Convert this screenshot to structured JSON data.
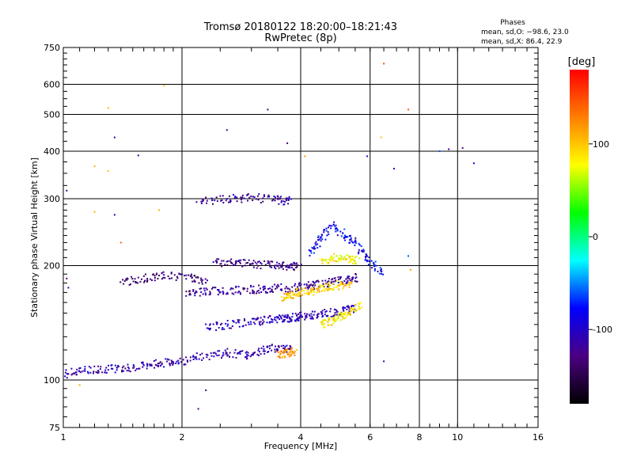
{
  "chart_data": {
    "type": "scatter",
    "title": "Tromsø 20180122 18:20:00–18:21:43",
    "subtitle": "RwPretec (8p)",
    "xlabel": "Frequency [MHz]",
    "ylabel": "Stationary phase Virtual Height [km]",
    "x_scale": "log",
    "y_scale": "log",
    "xlim": [
      1,
      16
    ],
    "ylim": [
      75,
      750
    ],
    "x_ticks": [
      1,
      2,
      4,
      6,
      8,
      10,
      16
    ],
    "y_ticks": [
      75,
      100,
      200,
      300,
      400,
      500,
      600,
      750
    ],
    "grid": true,
    "stats": {
      "title": "Phases",
      "o_line": "mean, sd,O: −98.6, 23.0",
      "x_line": "mean, sd,X:  86.4, 22.9"
    },
    "colorbar": {
      "label": "[deg]",
      "range": [
        -180,
        180
      ],
      "ticks": [
        -100,
        0,
        100
      ],
      "colors": [
        "#000000",
        "#4b0082",
        "#0000ff",
        "#00ffff",
        "#00ff00",
        "#ffff00",
        "#ff7f00",
        "#ff0000"
      ]
    },
    "traces": [
      {
        "freq": [
          1.0,
          1.1,
          1.25,
          1.4,
          1.6,
          1.8,
          2.0,
          2.3,
          2.6,
          2.9,
          3.2,
          3.5,
          3.8
        ],
        "height": [
          103,
          106,
          107,
          107,
          109,
          111,
          112,
          116,
          118,
          116,
          120,
          122,
          120
        ],
        "phase": -110
      },
      {
        "freq": [
          2.3,
          2.6,
          3.0,
          3.3,
          3.6,
          3.8,
          4.0,
          4.3,
          4.7,
          5.1,
          5.5
        ],
        "height": [
          137,
          140,
          142,
          144,
          145,
          146,
          147,
          148,
          150,
          152,
          155
        ],
        "phase": -105
      },
      {
        "freq": [
          2.05,
          2.3,
          2.6,
          3.0,
          3.3,
          3.7,
          4.1,
          4.4,
          4.8,
          5.2,
          5.6
        ],
        "height": [
          170,
          171,
          172,
          173,
          174,
          175,
          176,
          178,
          181,
          183,
          186
        ],
        "phase": -120
      },
      {
        "freq": [
          2.4,
          2.7,
          3.0,
          3.4,
          3.7,
          4.0
        ],
        "height": [
          204,
          203,
          202,
          201,
          200,
          199
        ],
        "phase": -125
      },
      {
        "freq": [
          1.4,
          1.6,
          1.8,
          2.1,
          2.3
        ],
        "height": [
          180,
          185,
          188,
          186,
          182
        ],
        "phase": -135
      },
      {
        "freq": [
          2.2,
          2.6,
          3.0,
          3.5,
          3.8
        ],
        "height": [
          295,
          300,
          302,
          298,
          296
        ],
        "phase": -115
      },
      {
        "freq": [
          4.2,
          4.5,
          4.8,
          5.2,
          5.6,
          6.0,
          6.5
        ],
        "height": [
          215,
          235,
          255,
          240,
          225,
          205,
          190
        ],
        "phase": -85
      },
      {
        "freq": [
          3.6,
          3.8,
          4.0,
          4.3,
          4.6,
          5.0,
          5.4
        ],
        "height": [
          165,
          168,
          170,
          172,
          175,
          178,
          180
        ],
        "phase": 95
      },
      {
        "freq": [
          4.5,
          4.8,
          5.1,
          5.4,
          5.7
        ],
        "height": [
          140,
          143,
          147,
          152,
          158
        ],
        "phase": 90
      },
      {
        "freq": [
          3.5,
          3.7,
          3.9
        ],
        "height": [
          117,
          118,
          119
        ],
        "phase": 120
      },
      {
        "freq": [
          4.5,
          4.9,
          5.3,
          5.6
        ],
        "height": [
          205,
          210,
          208,
          206
        ],
        "phase": 80
      }
    ],
    "scattered_points": [
      {
        "freq": 1.3,
        "height": 520,
        "phase": 110
      },
      {
        "freq": 1.8,
        "height": 595,
        "phase": 100
      },
      {
        "freq": 3.3,
        "height": 515,
        "phase": -130
      },
      {
        "freq": 2.6,
        "height": 455,
        "phase": -120
      },
      {
        "freq": 1.35,
        "height": 435,
        "phase": -110
      },
      {
        "freq": 1.55,
        "height": 390,
        "phase": -120
      },
      {
        "freq": 3.7,
        "height": 420,
        "phase": -130
      },
      {
        "freq": 4.1,
        "height": 388,
        "phase": 120
      },
      {
        "freq": 5.9,
        "height": 388,
        "phase": -100
      },
      {
        "freq": 6.5,
        "height": 680,
        "phase": 150
      },
      {
        "freq": 7.5,
        "height": 515,
        "phase": 145
      },
      {
        "freq": 6.4,
        "height": 435,
        "phase": 100
      },
      {
        "freq": 6.9,
        "height": 360,
        "phase": -100
      },
      {
        "freq": 9.0,
        "height": 400,
        "phase": -60
      },
      {
        "freq": 9.5,
        "height": 405,
        "phase": -110
      },
      {
        "freq": 10.3,
        "height": 408,
        "phase": -130
      },
      {
        "freq": 11.0,
        "height": 372,
        "phase": -90
      },
      {
        "freq": 1.2,
        "height": 365,
        "phase": 110
      },
      {
        "freq": 1.3,
        "height": 355,
        "phase": 100
      },
      {
        "freq": 1.02,
        "height": 315,
        "phase": -120
      },
      {
        "freq": 1.2,
        "height": 277,
        "phase": 110
      },
      {
        "freq": 1.35,
        "height": 272,
        "phase": -110
      },
      {
        "freq": 1.75,
        "height": 280,
        "phase": 110
      },
      {
        "freq": 1.4,
        "height": 230,
        "phase": 140
      },
      {
        "freq": 2.3,
        "height": 94,
        "phase": -140
      },
      {
        "freq": 2.2,
        "height": 84,
        "phase": -130
      },
      {
        "freq": 1.1,
        "height": 97,
        "phase": 110
      },
      {
        "freq": 6.5,
        "height": 112,
        "phase": -110
      },
      {
        "freq": 7.6,
        "height": 195,
        "phase": 120
      },
      {
        "freq": 7.5,
        "height": 212,
        "phase": -60
      },
      {
        "freq": 1.02,
        "height": 185,
        "phase": -130
      },
      {
        "freq": 1.03,
        "height": 175,
        "phase": -100
      }
    ]
  }
}
